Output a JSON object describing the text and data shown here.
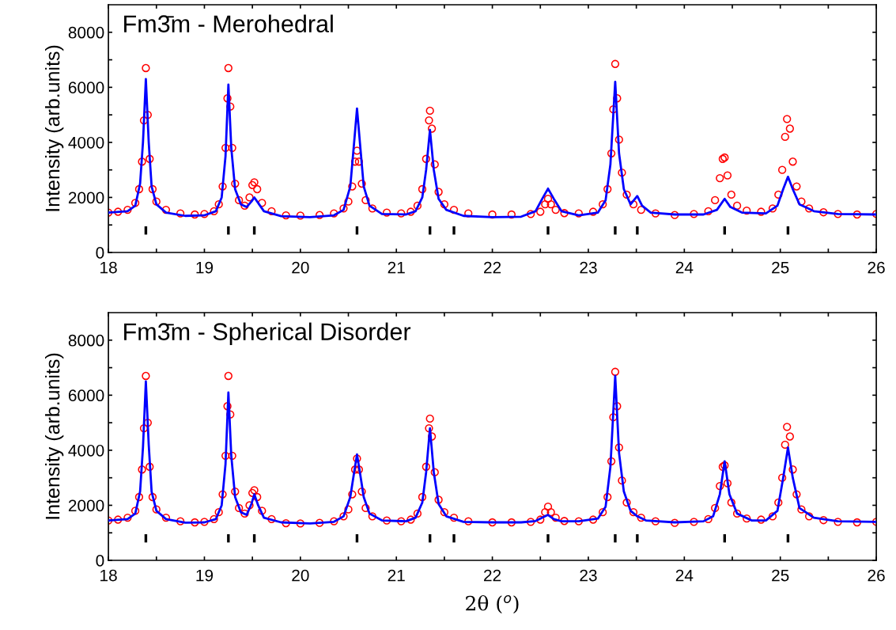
{
  "chart_data": [
    {
      "type": "scatter",
      "title": "Fm3̄m - Merohedral",
      "ylabel": "Intensity (arb.units)",
      "xlim": [
        18,
        26
      ],
      "ylim": [
        0,
        9000
      ],
      "grid": false,
      "legend": false,
      "xticks": [
        18,
        {
          "value": 18.5,
          "label": null
        },
        19,
        {
          "value": 19.5,
          "label": null
        },
        20,
        {
          "value": 20.5,
          "label": null
        },
        21,
        {
          "value": 21.5,
          "label": null
        },
        22,
        {
          "value": 22.5,
          "label": null
        },
        23,
        {
          "value": 23.5,
          "label": null
        },
        24,
        {
          "value": 24.5,
          "label": null
        },
        25,
        {
          "value": 25.5,
          "label": null
        },
        26
      ],
      "yticks": [
        0,
        {
          "value": 1000,
          "label": null
        },
        2000,
        {
          "value": 3000,
          "label": null
        },
        4000,
        {
          "value": 5000,
          "label": null
        },
        6000,
        {
          "value": 7000,
          "label": null
        },
        8000
      ],
      "series": [
        {
          "marker": "circle",
          "color": "#ff0000",
          "x": [
            18.0,
            18.1,
            18.2,
            18.28,
            18.32,
            18.35,
            18.37,
            18.39,
            18.41,
            18.43,
            18.46,
            18.5,
            18.6,
            18.75,
            18.9,
            19.0,
            19.1,
            19.15,
            19.19,
            19.22,
            19.24,
            19.25,
            19.27,
            19.29,
            19.32,
            19.36,
            19.42,
            19.47,
            19.5,
            19.52,
            19.55,
            19.6,
            19.7,
            19.85,
            20.0,
            20.2,
            20.35,
            20.45,
            20.5,
            20.54,
            20.57,
            20.59,
            20.61,
            20.64,
            20.68,
            20.75,
            20.9,
            21.05,
            21.15,
            21.22,
            21.27,
            21.31,
            21.34,
            21.35,
            21.37,
            21.4,
            21.44,
            21.5,
            21.6,
            21.75,
            22.0,
            22.2,
            22.4,
            22.5,
            22.55,
            22.58,
            22.61,
            22.66,
            22.75,
            22.9,
            23.05,
            23.15,
            23.2,
            23.24,
            23.26,
            23.28,
            23.3,
            23.32,
            23.35,
            23.4,
            23.47,
            23.55,
            23.7,
            23.9,
            24.1,
            24.25,
            24.32,
            24.37,
            24.4,
            24.42,
            24.45,
            24.49,
            24.55,
            24.65,
            24.8,
            24.92,
            24.98,
            25.02,
            25.05,
            25.07,
            25.1,
            25.13,
            25.17,
            25.22,
            25.3,
            25.45,
            25.6,
            25.8,
            26.0
          ],
          "values": [
            1450,
            1480,
            1550,
            1800,
            2300,
            3300,
            4800,
            6700,
            5000,
            3400,
            2300,
            1850,
            1550,
            1420,
            1380,
            1400,
            1500,
            1750,
            2400,
            3800,
            5600,
            6700,
            5300,
            3800,
            2500,
            1900,
            1700,
            2000,
            2450,
            2550,
            2300,
            1800,
            1500,
            1350,
            1340,
            1360,
            1420,
            1600,
            1850,
            2400,
            3300,
            3700,
            3300,
            2500,
            1900,
            1600,
            1450,
            1420,
            1480,
            1700,
            2300,
            3400,
            4800,
            5150,
            4500,
            3200,
            2200,
            1750,
            1550,
            1420,
            1380,
            1380,
            1400,
            1480,
            1750,
            1950,
            1750,
            1550,
            1430,
            1420,
            1480,
            1750,
            2300,
            3600,
            5200,
            6850,
            5600,
            4100,
            2900,
            2100,
            1750,
            1550,
            1420,
            1360,
            1400,
            1500,
            1900,
            2700,
            3400,
            3450,
            2800,
            2100,
            1700,
            1520,
            1480,
            1600,
            2100,
            3000,
            4200,
            4850,
            4500,
            3300,
            2400,
            1850,
            1600,
            1460,
            1400,
            1380,
            1400
          ]
        },
        {
          "type": "line",
          "marker": "none",
          "color": "#0000ff",
          "x": [
            18.0,
            18.2,
            18.28,
            18.33,
            18.36,
            18.39,
            18.42,
            18.45,
            18.5,
            18.6,
            18.8,
            19.0,
            19.12,
            19.18,
            19.22,
            19.25,
            19.28,
            19.32,
            19.38,
            19.44,
            19.49,
            19.52,
            19.56,
            19.62,
            19.8,
            20.1,
            20.35,
            20.45,
            20.52,
            20.56,
            20.59,
            20.62,
            20.66,
            20.72,
            20.85,
            21.1,
            21.2,
            21.27,
            21.31,
            21.35,
            21.39,
            21.44,
            21.52,
            21.7,
            22.0,
            22.3,
            22.45,
            22.52,
            22.58,
            22.64,
            22.72,
            22.9,
            23.1,
            23.18,
            23.23,
            23.28,
            23.32,
            23.37,
            23.44,
            23.51,
            23.56,
            23.65,
            23.9,
            24.2,
            24.34,
            24.42,
            24.48,
            24.6,
            24.85,
            24.97,
            25.03,
            25.08,
            25.13,
            25.2,
            25.35,
            25.6,
            26.0
          ],
          "values": [
            1450,
            1500,
            1700,
            2500,
            4000,
            6300,
            4000,
            2400,
            1750,
            1450,
            1330,
            1350,
            1500,
            2000,
            3500,
            6100,
            3800,
            2300,
            1750,
            1650,
            1850,
            2000,
            1800,
            1500,
            1320,
            1280,
            1350,
            1550,
            2400,
            4000,
            5230,
            4000,
            2400,
            1700,
            1400,
            1380,
            1500,
            2000,
            3000,
            4450,
            3000,
            1950,
            1550,
            1330,
            1280,
            1300,
            1500,
            1950,
            2320,
            1950,
            1500,
            1350,
            1450,
            1900,
            3200,
            6200,
            3600,
            2300,
            1750,
            2050,
            1700,
            1450,
            1380,
            1380,
            1550,
            1950,
            1650,
            1450,
            1420,
            1700,
            2300,
            2750,
            2300,
            1750,
            1500,
            1400,
            1380
          ]
        },
        {
          "type": "bar",
          "color": "#000000",
          "x": [
            18.39,
            19.25,
            19.52,
            20.59,
            21.35,
            21.6,
            22.58,
            23.28,
            23.51,
            24.42,
            25.08
          ],
          "base": [
            650,
            650,
            650,
            650,
            650,
            650,
            650,
            650,
            650,
            650,
            650
          ],
          "values": [
            300,
            300,
            300,
            300,
            300,
            300,
            300,
            300,
            300,
            300,
            300
          ]
        }
      ]
    },
    {
      "type": "scatter",
      "title": "Fm3̄m - Spherical Disorder",
      "xlabel": "2θ ($^{o}$)",
      "ylabel": "Intensity (arb.units)",
      "xlim": [
        18,
        26
      ],
      "ylim": [
        0,
        9000
      ],
      "grid": false,
      "legend": false,
      "xticks": [
        18,
        {
          "value": 18.5,
          "label": null
        },
        19,
        {
          "value": 19.5,
          "label": null
        },
        20,
        {
          "value": 20.5,
          "label": null
        },
        21,
        {
          "value": 21.5,
          "label": null
        },
        22,
        {
          "value": 22.5,
          "label": null
        },
        23,
        {
          "value": 23.5,
          "label": null
        },
        24,
        {
          "value": 24.5,
          "label": null
        },
        25,
        {
          "value": 25.5,
          "label": null
        },
        26
      ],
      "yticks": [
        0,
        {
          "value": 1000,
          "label": null
        },
        2000,
        {
          "value": 3000,
          "label": null
        },
        4000,
        {
          "value": 5000,
          "label": null
        },
        6000,
        {
          "value": 7000,
          "label": null
        },
        8000
      ],
      "series": [
        {
          "type": "scatter",
          "marker": "circle",
          "color": "#ff0000",
          "x": [
            18.0,
            18.1,
            18.2,
            18.28,
            18.32,
            18.35,
            18.37,
            18.39,
            18.41,
            18.43,
            18.46,
            18.5,
            18.6,
            18.75,
            18.9,
            19.0,
            19.1,
            19.15,
            19.19,
            19.22,
            19.24,
            19.25,
            19.27,
            19.29,
            19.32,
            19.36,
            19.42,
            19.47,
            19.5,
            19.52,
            19.55,
            19.6,
            19.7,
            19.85,
            20.0,
            20.2,
            20.35,
            20.45,
            20.5,
            20.54,
            20.57,
            20.59,
            20.61,
            20.64,
            20.68,
            20.75,
            20.9,
            21.05,
            21.15,
            21.22,
            21.27,
            21.31,
            21.34,
            21.35,
            21.37,
            21.4,
            21.44,
            21.5,
            21.6,
            21.75,
            22.0,
            22.2,
            22.4,
            22.5,
            22.55,
            22.58,
            22.61,
            22.66,
            22.75,
            22.9,
            23.05,
            23.15,
            23.2,
            23.24,
            23.26,
            23.28,
            23.3,
            23.32,
            23.35,
            23.4,
            23.47,
            23.55,
            23.7,
            23.9,
            24.1,
            24.25,
            24.32,
            24.37,
            24.4,
            24.42,
            24.45,
            24.49,
            24.55,
            24.65,
            24.8,
            24.92,
            24.98,
            25.02,
            25.05,
            25.07,
            25.1,
            25.13,
            25.17,
            25.22,
            25.3,
            25.45,
            25.6,
            25.8,
            26.0
          ],
          "values": [
            1450,
            1480,
            1550,
            1800,
            2300,
            3300,
            4800,
            6700,
            5000,
            3400,
            2300,
            1850,
            1550,
            1420,
            1380,
            1400,
            1500,
            1750,
            2400,
            3800,
            5600,
            6700,
            5300,
            3800,
            2500,
            1900,
            1700,
            2000,
            2450,
            2550,
            2300,
            1800,
            1500,
            1350,
            1340,
            1360,
            1420,
            1600,
            1850,
            2400,
            3300,
            3700,
            3300,
            2500,
            1900,
            1600,
            1450,
            1420,
            1480,
            1700,
            2300,
            3400,
            4800,
            5150,
            4500,
            3200,
            2200,
            1750,
            1550,
            1420,
            1380,
            1380,
            1400,
            1480,
            1750,
            1950,
            1750,
            1550,
            1430,
            1420,
            1480,
            1750,
            2300,
            3600,
            5200,
            6850,
            5600,
            4100,
            2900,
            2100,
            1750,
            1550,
            1420,
            1360,
            1400,
            1500,
            1900,
            2700,
            3400,
            3450,
            2800,
            2100,
            1700,
            1520,
            1480,
            1600,
            2100,
            3000,
            4200,
            4850,
            4500,
            3300,
            2400,
            1850,
            1600,
            1460,
            1400,
            1380,
            1400
          ]
        },
        {
          "type": "line",
          "marker": "none",
          "color": "#0000ff",
          "x": [
            18.0,
            18.2,
            18.28,
            18.33,
            18.36,
            18.39,
            18.42,
            18.45,
            18.5,
            18.6,
            18.8,
            19.0,
            19.12,
            19.18,
            19.22,
            19.25,
            19.28,
            19.32,
            19.38,
            19.44,
            19.49,
            19.52,
            19.56,
            19.62,
            19.8,
            20.1,
            20.35,
            20.45,
            20.52,
            20.56,
            20.59,
            20.62,
            20.66,
            20.72,
            20.85,
            21.1,
            21.2,
            21.27,
            21.31,
            21.35,
            21.39,
            21.44,
            21.52,
            21.7,
            22.0,
            22.3,
            22.45,
            22.52,
            22.58,
            22.64,
            22.72,
            22.9,
            23.1,
            23.18,
            23.23,
            23.28,
            23.32,
            23.37,
            23.44,
            23.51,
            23.6,
            23.9,
            24.2,
            24.3,
            24.37,
            24.42,
            24.47,
            24.55,
            24.7,
            24.85,
            24.97,
            25.03,
            25.08,
            25.13,
            25.2,
            25.35,
            25.6,
            26.0
          ],
          "values": [
            1450,
            1500,
            1700,
            2500,
            4100,
            6500,
            4200,
            2500,
            1800,
            1500,
            1370,
            1380,
            1500,
            2000,
            3500,
            6100,
            3800,
            2300,
            1750,
            1650,
            2050,
            2400,
            2000,
            1550,
            1380,
            1340,
            1400,
            1600,
            2300,
            3200,
            3850,
            3200,
            2300,
            1700,
            1450,
            1420,
            1550,
            2100,
            3200,
            4800,
            3200,
            2050,
            1600,
            1400,
            1380,
            1380,
            1430,
            1550,
            1650,
            1500,
            1420,
            1420,
            1520,
            1950,
            3400,
            6700,
            3900,
            2500,
            1800,
            1600,
            1450,
            1380,
            1420,
            1600,
            2400,
            3600,
            2400,
            1700,
            1450,
            1450,
            1800,
            3000,
            4100,
            3000,
            1900,
            1550,
            1420,
            1400
          ]
        },
        {
          "type": "bar",
          "color": "#000000",
          "x": [
            18.39,
            19.25,
            19.52,
            20.59,
            21.35,
            21.6,
            22.58,
            23.28,
            23.51,
            24.42,
            25.08
          ],
          "base": [
            650,
            650,
            650,
            650,
            650,
            650,
            650,
            650,
            650,
            650,
            650
          ],
          "values": [
            300,
            300,
            300,
            300,
            300,
            300,
            300,
            300,
            300,
            300,
            300
          ]
        }
      ]
    }
  ]
}
